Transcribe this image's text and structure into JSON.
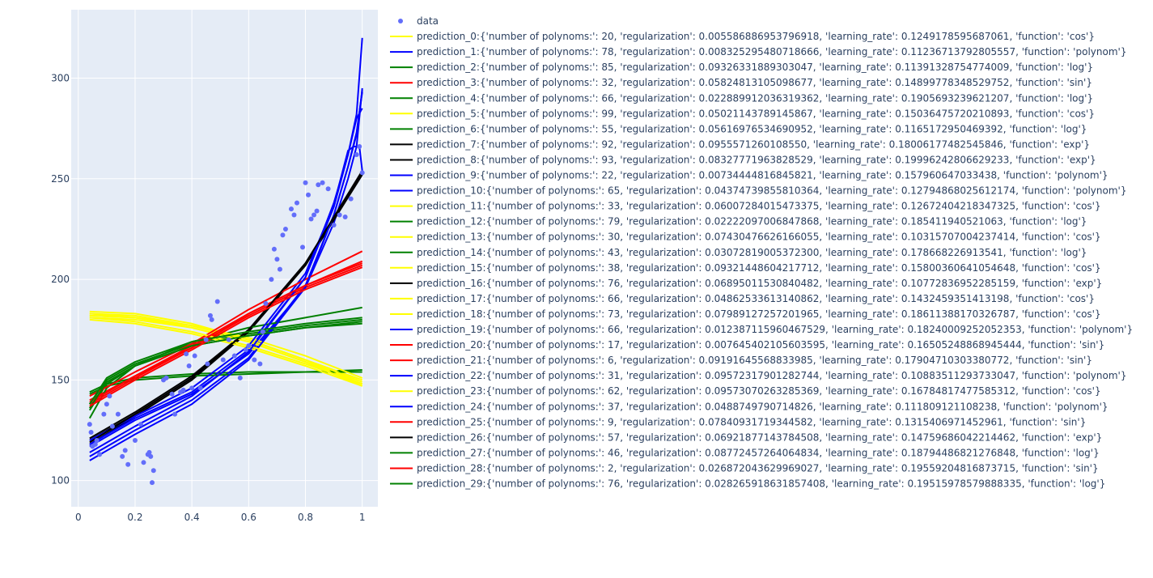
{
  "chart_data": {
    "type": "line",
    "title": "",
    "xlabel": "",
    "ylabel": "",
    "xlim": [
      -0.025,
      1.055
    ],
    "ylim": [
      87,
      334
    ],
    "grid": true,
    "legend_position": "right",
    "x_ticks": [
      {
        "value": 0,
        "label": "0"
      },
      {
        "value": 0.2,
        "label": "0.2"
      },
      {
        "value": 0.4,
        "label": "0.4"
      },
      {
        "value": 0.6,
        "label": "0.6"
      },
      {
        "value": 0.8,
        "label": "0.8"
      },
      {
        "value": 1,
        "label": "1"
      }
    ],
    "y_ticks": [
      {
        "value": 100,
        "label": "100"
      },
      {
        "value": 150,
        "label": "150"
      },
      {
        "value": 200,
        "label": "200"
      },
      {
        "value": 250,
        "label": "250"
      },
      {
        "value": 300,
        "label": "300"
      }
    ],
    "colors": {
      "data": "#636efa",
      "cos": "#ffff00",
      "polynom": "#0000ff",
      "log": "#008000",
      "sin": "#ff0000",
      "exp": "#000000",
      "plot_bg": "#e5ecf6",
      "grid": "#ffffff"
    },
    "scatter": {
      "name": "data",
      "x": [
        0.04,
        0.045,
        0.05,
        0.06,
        0.065,
        0.075,
        0.09,
        0.1,
        0.11,
        0.12,
        0.14,
        0.155,
        0.165,
        0.175,
        0.2,
        0.22,
        0.23,
        0.245,
        0.25,
        0.255,
        0.26,
        0.265,
        0.3,
        0.31,
        0.33,
        0.34,
        0.36,
        0.37,
        0.38,
        0.39,
        0.4,
        0.41,
        0.43,
        0.45,
        0.455,
        0.465,
        0.47,
        0.49,
        0.51,
        0.53,
        0.55,
        0.57,
        0.59,
        0.6,
        0.62,
        0.64,
        0.65,
        0.66,
        0.68,
        0.69,
        0.7,
        0.71,
        0.72,
        0.73,
        0.75,
        0.76,
        0.77,
        0.79,
        0.8,
        0.81,
        0.82,
        0.83,
        0.84,
        0.845,
        0.86,
        0.88,
        0.9,
        0.92,
        0.94,
        0.96,
        0.98,
        0.99,
        1.0
      ],
      "y": [
        128,
        124,
        117,
        118,
        120,
        113,
        133,
        138,
        142,
        127,
        133,
        112,
        115,
        108,
        120,
        128,
        109,
        113,
        114,
        112,
        99,
        105,
        150,
        151,
        143,
        133,
        144,
        145,
        163,
        157,
        146,
        162,
        146,
        170,
        158,
        182,
        180,
        189,
        160,
        170,
        162,
        151,
        165,
        167,
        160,
        158,
        174,
        188,
        200,
        215,
        210,
        205,
        222,
        225,
        235,
        232,
        238,
        216,
        248,
        242,
        230,
        232,
        234,
        247,
        248,
        245,
        227,
        232,
        231,
        240,
        262,
        266,
        253
      ]
    },
    "series": [
      {
        "name": "prediction_0:{'number of polynoms:': 20, 'regularization': 0.005586886953796918, 'learning_rate': 0.1249178595687061, 'function': 'cos'}",
        "function": "cos",
        "x": [
          0.04,
          0.2,
          0.4,
          0.6,
          0.8,
          1.0
        ],
        "y": [
          183,
          182,
          177,
          170,
          160,
          148
        ]
      },
      {
        "name": "prediction_1:{'number of polynoms:': 78, 'regularization': 0.008325295480718666, 'learning_rate': 0.11236713792805557, 'function': 'polynom'}",
        "function": "polynom",
        "x": [
          0.04,
          0.2,
          0.4,
          0.6,
          0.8,
          0.9,
          0.95,
          0.98,
          1.0
        ],
        "y": [
          117,
          130,
          143,
          163,
          196,
          228,
          250,
          266,
          295
        ]
      },
      {
        "name": "prediction_2:{'number of polynoms:': 85, 'regularization': 0.09326331889303047, 'learning_rate': 0.11391328754774009, 'function': 'log'}",
        "function": "log",
        "x": [
          0.04,
          0.1,
          0.2,
          0.4,
          0.6,
          0.8,
          1.0
        ],
        "y": [
          135,
          148,
          157,
          167,
          172,
          176,
          179
        ]
      },
      {
        "name": "prediction_3:{'number of polynoms:': 32, 'regularization': 0.05824813105098677, 'learning_rate': 0.14899778348529752, 'function': 'sin'}",
        "function": "sin",
        "x": [
          0.04,
          0.2,
          0.4,
          0.6,
          0.8,
          1.0
        ],
        "y": [
          140,
          152,
          166,
          183,
          197,
          209
        ]
      },
      {
        "name": "prediction_4:{'number of polynoms:': 66, 'regularization': 0.022889912036319362, 'learning_rate': 0.1905693239621207, 'function': 'log'}",
        "function": "log",
        "x": [
          0.04,
          0.1,
          0.2,
          0.4,
          0.6,
          0.8,
          1.0
        ],
        "y": [
          144,
          148,
          151,
          153,
          154,
          154,
          155
        ]
      },
      {
        "name": "prediction_5:{'number of polynoms:': 99, 'regularization': 0.05021143789145867, 'learning_rate': 0.15036475720210893, 'function': 'cos'}",
        "function": "cos",
        "x": [
          0.04,
          0.2,
          0.4,
          0.6,
          0.8,
          1.0
        ],
        "y": [
          181,
          180,
          176,
          169,
          159,
          148
        ]
      },
      {
        "name": "prediction_6:{'number of polynoms:': 55, 'regularization': 0.05616976534690952, 'learning_rate': 0.1165172950469392, 'function': 'log'}",
        "function": "log",
        "x": [
          0.04,
          0.1,
          0.2,
          0.4,
          0.6,
          0.8,
          1.0
        ],
        "y": [
          138,
          150,
          158,
          168,
          173,
          177,
          180
        ]
      },
      {
        "name": "prediction_7:{'number of polynoms:': 92, 'regularization': 0.0955571260108550, 'learning_rate': 0.18006177482545846, 'function': 'exp'}",
        "function": "exp",
        "x": [
          0.04,
          0.2,
          0.4,
          0.6,
          0.8,
          1.0
        ],
        "y": [
          120,
          133,
          151,
          174,
          207,
          252
        ]
      },
      {
        "name": "prediction_8:{'number of polynoms:': 93, 'regularization': 0.08327771963828529, 'learning_rate': 0.19996242806629233, 'function': 'exp'}",
        "function": "exp",
        "x": [
          0.04,
          0.2,
          0.4,
          0.6,
          0.8,
          1.0
        ],
        "y": [
          118,
          132,
          150,
          174,
          207,
          253
        ]
      },
      {
        "name": "prediction_9:{'number of polynoms:': 22, 'regularization': 0.00734444816845821, 'learning_rate': 0.157960647033438, 'function': 'polynom'}",
        "function": "polynom",
        "x": [
          0.04,
          0.2,
          0.4,
          0.6,
          0.8,
          0.9,
          0.95,
          0.98,
          1.0
        ],
        "y": [
          112,
          125,
          140,
          161,
          197,
          232,
          256,
          272,
          294
        ]
      },
      {
        "name": "prediction_10:{'number of polynoms:': 65, 'regularization': 0.04374739855810364, 'learning_rate': 0.12794868025612174, 'function': 'polynom'}",
        "function": "polynom",
        "x": [
          0.04,
          0.2,
          0.4,
          0.6,
          0.8,
          0.9,
          0.95,
          0.98,
          1.0
        ],
        "y": [
          118,
          131,
          144,
          165,
          201,
          236,
          262,
          282,
          320
        ]
      },
      {
        "name": "prediction_11:{'number of polynoms:': 33, 'regularization': 0.06007284015473375, 'learning_rate': 0.12672404218347325, 'function': 'cos'}",
        "function": "cos",
        "x": [
          0.04,
          0.2,
          0.4,
          0.6,
          0.8,
          1.0
        ],
        "y": [
          184,
          183,
          178,
          170,
          160,
          150
        ]
      },
      {
        "name": "prediction_12:{'number of polynoms:': 79, 'regularization': 0.02222097006847868, 'learning_rate': 0.185411940521063, 'function': 'log'}",
        "function": "log",
        "x": [
          0.04,
          0.1,
          0.2,
          0.4,
          0.6,
          0.8,
          1.0
        ],
        "y": [
          143,
          147,
          150,
          152,
          153,
          154,
          154
        ]
      },
      {
        "name": "prediction_13:{'number of polynoms:': 30, 'regularization': 0.07430476626166055, 'learning_rate': 0.10315707004237414, 'function': 'cos'}",
        "function": "cos",
        "x": [
          0.04,
          0.2,
          0.4,
          0.6,
          0.8,
          1.0
        ],
        "y": [
          180,
          178,
          173,
          166,
          157,
          147
        ]
      },
      {
        "name": "prediction_14:{'number of polynoms:': 43, 'regularization': 0.03072819005372300, 'learning_rate': 0.178668226913541, 'function': 'log'}",
        "function": "log",
        "x": [
          0.04,
          0.1,
          0.2,
          0.4,
          0.6,
          0.8,
          1.0
        ],
        "y": [
          131,
          146,
          157,
          169,
          176,
          181,
          186
        ]
      },
      {
        "name": "prediction_15:{'number of polynoms:': 38, 'regularization': 0.09321448604217712, 'learning_rate': 0.15800360641054648, 'function': 'cos'}",
        "function": "cos",
        "x": [
          0.04,
          0.2,
          0.4,
          0.6,
          0.8,
          1.0
        ],
        "y": [
          182,
          181,
          177,
          170,
          160,
          149
        ]
      },
      {
        "name": "prediction_16:{'number of polynoms:': 76, 'regularization': 0.06895011530840482, 'learning_rate': 0.10772836952285159, 'function': 'exp'}",
        "function": "exp",
        "x": [
          0.04,
          0.2,
          0.4,
          0.6,
          0.8,
          1.0
        ],
        "y": [
          121,
          134,
          152,
          175,
          208,
          253
        ]
      },
      {
        "name": "prediction_17:{'number of polynoms:': 66, 'regularization': 0.04862533613140862, 'learning_rate': 0.1432459351413198, 'function': 'cos'}",
        "function": "cos",
        "x": [
          0.04,
          0.2,
          0.4,
          0.6,
          0.8,
          1.0
        ],
        "y": [
          183,
          181,
          176,
          169,
          159,
          147
        ]
      },
      {
        "name": "prediction_18:{'number of polynoms:': 73, 'regularization': 0.07989127257201965, 'learning_rate': 0.18611388170326787, 'function': 'cos'}",
        "function": "cos",
        "x": [
          0.04,
          0.2,
          0.4,
          0.6,
          0.8,
          1.0
        ],
        "y": [
          182,
          181,
          177,
          171,
          162,
          151
        ]
      },
      {
        "name": "prediction_19:{'number of polynoms:': 66, 'regularization': 0.012387115960467529, 'learning_rate': 0.18240009252052353, 'function': 'polynom'}",
        "function": "polynom",
        "x": [
          0.04,
          0.2,
          0.4,
          0.6,
          0.8,
          0.9,
          0.95,
          0.97,
          0.99,
          1.0
        ],
        "y": [
          120,
          132,
          146,
          167,
          203,
          237,
          264,
          266,
          266,
          254
        ]
      },
      {
        "name": "prediction_20:{'number of polynoms:': 17, 'regularization': 0.007645402105603595, 'learning_rate': 0.16505248868945444, 'function': 'sin'}",
        "function": "sin",
        "x": [
          0.04,
          0.2,
          0.4,
          0.6,
          0.8,
          1.0
        ],
        "y": [
          138,
          151,
          166,
          182,
          196,
          207
        ]
      },
      {
        "name": "prediction_21:{'number of polynoms:': 6, 'regularization': 0.09191645568833985, 'learning_rate': 0.17904710303380772, 'function': 'sin'}",
        "function": "sin",
        "x": [
          0.04,
          0.2,
          0.4,
          0.6,
          0.8,
          1.0
        ],
        "y": [
          142,
          154,
          168,
          185,
          200,
          214
        ]
      },
      {
        "name": "prediction_22:{'number of polynoms:': 31, 'regularization': 0.09572317901282744, 'learning_rate': 0.10883511293733047, 'function': 'polynom'}",
        "function": "polynom",
        "x": [
          0.04,
          0.2,
          0.4,
          0.6,
          0.8,
          0.9,
          0.95,
          0.98,
          1.0
        ],
        "y": [
          110,
          123,
          138,
          160,
          196,
          232,
          256,
          273,
          293
        ]
      },
      {
        "name": "prediction_23:{'number of polynoms:': 62, 'regularization': 0.09573070263285369, 'learning_rate': 0.16784817477585312, 'function': 'cos'}",
        "function": "cos",
        "x": [
          0.04,
          0.2,
          0.4,
          0.6,
          0.8,
          1.0
        ],
        "y": [
          181,
          179,
          174,
          167,
          158,
          148
        ]
      },
      {
        "name": "prediction_24:{'number of polynoms:': 37, 'regularization': 0.0488749790714826, 'learning_rate': 0.111809121108238, 'function': 'polynom'}",
        "function": "polynom",
        "x": [
          0.04,
          0.2,
          0.4,
          0.6,
          0.8,
          0.9,
          0.95,
          0.98,
          1.0
        ],
        "y": [
          114,
          127,
          142,
          164,
          201,
          238,
          262,
          280,
          285
        ]
      },
      {
        "name": "prediction_25:{'number of polynoms:': 9, 'regularization': 0.07840931719344582, 'learning_rate': 0.1315406971452961, 'function': 'sin'}",
        "function": "sin",
        "x": [
          0.04,
          0.2,
          0.4,
          0.6,
          0.8,
          1.0
        ],
        "y": [
          139,
          152,
          167,
          183,
          197,
          208
        ]
      },
      {
        "name": "prediction_26:{'number of polynoms:': 57, 'regularization': 0.06921877143784508, 'learning_rate': 0.14759686042214462, 'function': 'exp'}",
        "function": "exp",
        "x": [
          0.04,
          0.2,
          0.4,
          0.6,
          0.8,
          1.0
        ],
        "y": [
          119,
          133,
          151,
          175,
          208,
          254
        ]
      },
      {
        "name": "prediction_27:{'number of polynoms:': 46, 'regularization': 0.08772457264064834, 'learning_rate': 0.18794486821276848, 'function': 'log'}",
        "function": "log",
        "x": [
          0.04,
          0.1,
          0.2,
          0.4,
          0.6,
          0.8,
          1.0
        ],
        "y": [
          136,
          149,
          157,
          167,
          172,
          176,
          178
        ]
      },
      {
        "name": "prediction_28:{'number of polynoms:': 2, 'regularization': 0.026872043629969027, 'learning_rate': 0.19559204816873715, 'function': 'sin'}",
        "function": "sin",
        "x": [
          0.04,
          0.2,
          0.4,
          0.6,
          0.8,
          1.0
        ],
        "y": [
          137,
          150,
          165,
          181,
          195,
          206
        ]
      },
      {
        "name": "prediction_29:{'number of polynoms:': 76, 'regularization': 0.028265918631857408, 'learning_rate': 0.19515978579888335, 'function': 'log'}",
        "function": "log",
        "x": [
          0.04,
          0.1,
          0.2,
          0.4,
          0.6,
          0.8,
          1.0
        ],
        "y": [
          138,
          151,
          159,
          169,
          174,
          178,
          181
        ]
      }
    ]
  }
}
